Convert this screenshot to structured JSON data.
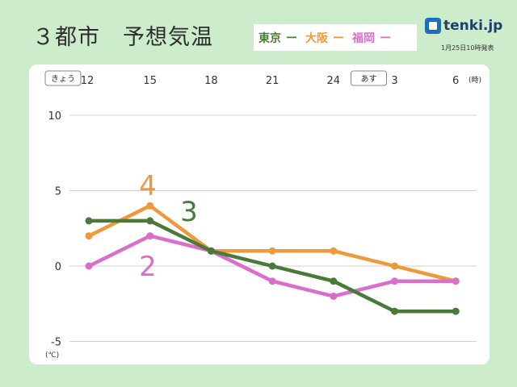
{
  "title": "３都市　予想気温",
  "legend": [
    {
      "label": "東京",
      "color": "#4a7a3a"
    },
    {
      "label": "大阪",
      "color": "#ee9a3c"
    },
    {
      "label": "福岡",
      "color": "#d96fcb"
    }
  ],
  "legend_dash": "ー",
  "logo": {
    "text": "tenki.jp",
    "icon": "tenki-logo-icon"
  },
  "issued": "1月25日10時発表",
  "chart_data": {
    "type": "line",
    "x": [
      "12",
      "15",
      "18",
      "21",
      "24",
      "3",
      "6"
    ],
    "x_unit": "(時)",
    "day_labels": [
      {
        "label": "きょう",
        "at": "12"
      },
      {
        "label": "あす",
        "at": "3"
      }
    ],
    "y_ticks": [
      10,
      5,
      0,
      -5
    ],
    "y_unit": "(℃)",
    "ylim": [
      -6,
      11
    ],
    "grid": true,
    "series": [
      {
        "name": "東京",
        "color": "#4a7a3a",
        "values": [
          3,
          3,
          1,
          0,
          -1,
          -3,
          -3
        ]
      },
      {
        "name": "大阪",
        "color": "#ee9a3c",
        "values": [
          2,
          4,
          1,
          1,
          1,
          0,
          -1
        ]
      },
      {
        "name": "福岡",
        "color": "#d96fcb",
        "values": [
          0,
          2,
          1,
          -1,
          -2,
          -1,
          -1
        ]
      }
    ],
    "annotations": [
      {
        "text": "4",
        "series": "大阪",
        "color": "#ee9a3c"
      },
      {
        "text": "3",
        "series": "東京",
        "color": "#4a7a3a"
      },
      {
        "text": "2",
        "series": "福岡",
        "color": "#d96fcb"
      }
    ]
  }
}
